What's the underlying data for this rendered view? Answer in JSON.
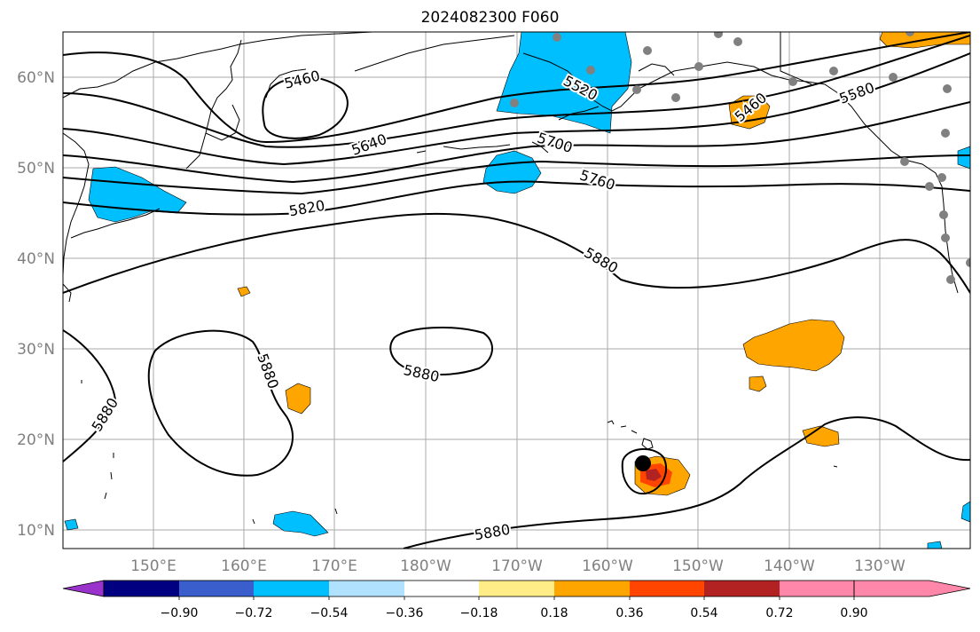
{
  "title": "2024082300 F060",
  "lat_labels": [
    "60°N",
    "50°N",
    "40°N",
    "30°N",
    "20°N",
    "10°N"
  ],
  "lon_labels": [
    "150°E",
    "160°E",
    "170°E",
    "180°W",
    "170°W",
    "160°W",
    "150°W",
    "140°W",
    "130°W"
  ],
  "colorbar": {
    "colors": [
      "#9933cc",
      "#000080",
      "#3a5fcd",
      "#00bfff",
      "#b0e2ff",
      "#ffffff",
      "#ffee88",
      "#ffa500",
      "#ff4500",
      "#b22222",
      "#ff88aa"
    ],
    "ticks": [
      "−0.90",
      "−0.72",
      "−0.54",
      "−0.36",
      "−0.18",
      "0.18",
      "0.36",
      "0.54",
      "0.72",
      "0.90"
    ]
  },
  "contour_labels": {
    "c5460_w": "5460",
    "c5520": "5520",
    "c5640": "5640",
    "c5700": "5700",
    "c5760": "5760",
    "c5820": "5820",
    "c5880_a": "5880",
    "c5880_b": "5880",
    "c5880_c": "5880",
    "c5880_d": "5880",
    "c5880_e": "5880",
    "c5460_e": "5460",
    "c5580_e": "5580"
  },
  "colors": {
    "negative_fill": "#00bfff",
    "positive_fill": "#ffa500",
    "strong_positive": "#ff4500",
    "very_strong": "#b22222",
    "station": "#808080",
    "grid": "#aaaaaa"
  },
  "storm_marker": "storm-center-marker"
}
